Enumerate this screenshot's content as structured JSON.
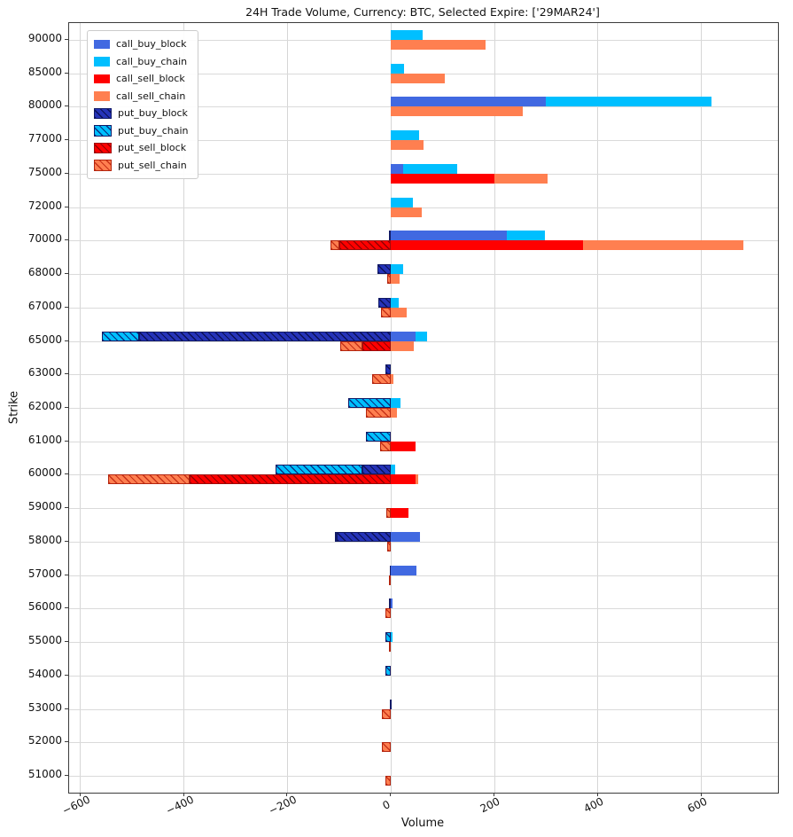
{
  "chart_data": {
    "type": "bar",
    "orientation": "horizontal",
    "stacked": true,
    "title": "24H Trade Volume, Currency: BTC, Selected Expire: ['29MAR24']",
    "xlabel": "Volume",
    "ylabel": "Strike",
    "xlim": [
      -622,
      748
    ],
    "xticks": [
      -600,
      -400,
      -200,
      0,
      200,
      400,
      600
    ],
    "grid": true,
    "legend_position": "upper-left",
    "colors": {
      "call_buy_block": "#4169e1",
      "call_buy_chain": "#00bfff",
      "call_sell_block": "#ff0000",
      "call_sell_chain": "#ff7f50",
      "put_buy_block": "#2533b8",
      "put_buy_chain": "#00bfff",
      "put_sell_block": "#ff0000",
      "put_sell_chain": "#ff7f50"
    },
    "legend": [
      {
        "key": "call_buy_block",
        "label": "call_buy_block",
        "cls": "cbb",
        "hatch": false
      },
      {
        "key": "call_buy_chain",
        "label": "call_buy_chain",
        "cls": "cbc",
        "hatch": false
      },
      {
        "key": "call_sell_block",
        "label": "call_sell_block",
        "cls": "csb",
        "hatch": false
      },
      {
        "key": "call_sell_chain",
        "label": "call_sell_chain",
        "cls": "csc",
        "hatch": false
      },
      {
        "key": "put_buy_block",
        "label": "put_buy_block",
        "cls": "pbb",
        "hatch": true
      },
      {
        "key": "put_buy_chain",
        "label": "put_buy_chain",
        "cls": "pbc",
        "hatch": true
      },
      {
        "key": "put_sell_block",
        "label": "put_sell_block",
        "cls": "psb",
        "hatch": true
      },
      {
        "key": "put_sell_chain",
        "label": "put_sell_chain",
        "cls": "psc",
        "hatch": true
      }
    ],
    "categories": [
      90000,
      85000,
      80000,
      77000,
      75000,
      72000,
      70000,
      68000,
      67000,
      65000,
      63000,
      62000,
      61000,
      60000,
      59000,
      58000,
      57000,
      56000,
      55000,
      54000,
      53000,
      52000,
      51000
    ],
    "rows": [
      {
        "strike": 90000,
        "call_buy_block": 0,
        "call_buy_chain": 61,
        "call_sell_block": 0,
        "call_sell_chain": 183,
        "put_buy_block": 0,
        "put_buy_chain": 0,
        "put_sell_block": 0,
        "put_sell_chain": 0
      },
      {
        "strike": 85000,
        "call_buy_block": 0,
        "call_buy_chain": 25,
        "call_sell_block": 0,
        "call_sell_chain": 104,
        "put_buy_block": 0,
        "put_buy_chain": 0,
        "put_sell_block": 0,
        "put_sell_chain": 0
      },
      {
        "strike": 80000,
        "call_buy_block": 300,
        "call_buy_chain": 320,
        "call_sell_block": 0,
        "call_sell_chain": 255,
        "put_buy_block": 0,
        "put_buy_chain": 0,
        "put_sell_block": 0,
        "put_sell_chain": 0
      },
      {
        "strike": 77000,
        "call_buy_block": 0,
        "call_buy_chain": 55,
        "call_sell_block": 0,
        "call_sell_chain": 63,
        "put_buy_block": 0,
        "put_buy_chain": 0,
        "put_sell_block": 0,
        "put_sell_chain": 0
      },
      {
        "strike": 75000,
        "call_buy_block": 24,
        "call_buy_chain": 104,
        "call_sell_block": 200,
        "call_sell_chain": 103,
        "put_buy_block": 0,
        "put_buy_chain": 0,
        "put_sell_block": 0,
        "put_sell_chain": 0
      },
      {
        "strike": 72000,
        "call_buy_block": 0,
        "call_buy_chain": 43,
        "call_sell_block": 0,
        "call_sell_chain": 59,
        "put_buy_block": 0,
        "put_buy_chain": 0,
        "put_sell_block": 0,
        "put_sell_chain": 0
      },
      {
        "strike": 70000,
        "call_buy_block": 224,
        "call_buy_chain": 74,
        "call_sell_block": 371,
        "call_sell_chain": 311,
        "put_buy_block": -4,
        "put_buy_chain": 0,
        "put_sell_block": -100,
        "put_sell_chain": -17
      },
      {
        "strike": 68000,
        "call_buy_block": 0,
        "call_buy_chain": 24,
        "call_sell_block": 0,
        "call_sell_chain": 16,
        "put_buy_block": -26,
        "put_buy_chain": 0,
        "put_sell_block": 0,
        "put_sell_chain": -8
      },
      {
        "strike": 67000,
        "call_buy_block": 0,
        "call_buy_chain": 15,
        "call_sell_block": 0,
        "call_sell_chain": 31,
        "put_buy_block": -24,
        "put_buy_chain": 0,
        "put_sell_block": 0,
        "put_sell_chain": -19
      },
      {
        "strike": 65000,
        "call_buy_block": 48,
        "call_buy_chain": 22,
        "call_sell_block": 0,
        "call_sell_chain": 45,
        "put_buy_block": -486,
        "put_buy_chain": -72,
        "put_sell_block": -55,
        "put_sell_chain": -43
      },
      {
        "strike": 63000,
        "call_buy_block": 0,
        "call_buy_chain": 0,
        "call_sell_block": 0,
        "call_sell_chain": 5,
        "put_buy_block": -10,
        "put_buy_chain": 0,
        "put_sell_block": 0,
        "put_sell_chain": -36
      },
      {
        "strike": 62000,
        "call_buy_block": 0,
        "call_buy_chain": 19,
        "call_sell_block": 0,
        "call_sell_chain": 11,
        "put_buy_block": 0,
        "put_buy_chain": -83,
        "put_sell_block": 0,
        "put_sell_chain": -49
      },
      {
        "strike": 61000,
        "call_buy_block": 0,
        "call_buy_chain": 0,
        "call_sell_block": 48,
        "call_sell_chain": 0,
        "put_buy_block": 0,
        "put_buy_chain": -49,
        "put_sell_block": 0,
        "put_sell_chain": -21
      },
      {
        "strike": 60000,
        "call_buy_block": 0,
        "call_buy_chain": 8,
        "call_sell_block": 47,
        "call_sell_chain": 5,
        "put_buy_block": -55,
        "put_buy_chain": -168,
        "put_sell_block": -389,
        "put_sell_chain": -158
      },
      {
        "strike": 59000,
        "call_buy_block": 0,
        "call_buy_chain": 0,
        "call_sell_block": 34,
        "call_sell_chain": 0,
        "put_buy_block": 0,
        "put_buy_chain": 0,
        "put_sell_block": 0,
        "put_sell_chain": -9
      },
      {
        "strike": 58000,
        "call_buy_block": 56,
        "call_buy_chain": 0,
        "call_sell_block": 0,
        "call_sell_chain": 0,
        "put_buy_block": -104,
        "put_buy_chain": -5,
        "put_sell_block": 0,
        "put_sell_chain": -8
      },
      {
        "strike": 57000,
        "call_buy_block": 50,
        "call_buy_chain": 0,
        "call_sell_block": 0,
        "call_sell_chain": 0,
        "put_buy_block": -2,
        "put_buy_chain": 0,
        "put_sell_block": 0,
        "put_sell_chain": -4
      },
      {
        "strike": 56000,
        "call_buy_block": 3,
        "call_buy_chain": 0,
        "call_sell_block": 0,
        "call_sell_chain": 0,
        "put_buy_block": -3,
        "put_buy_chain": 0,
        "put_sell_block": 0,
        "put_sell_chain": -10
      },
      {
        "strike": 55000,
        "call_buy_block": 0,
        "call_buy_chain": 3,
        "call_sell_block": 0,
        "call_sell_chain": 0,
        "put_buy_block": 0,
        "put_buy_chain": -10,
        "put_sell_block": 0,
        "put_sell_chain": -4
      },
      {
        "strike": 54000,
        "call_buy_block": 0,
        "call_buy_chain": 0,
        "call_sell_block": 0,
        "call_sell_chain": 0,
        "put_buy_block": 0,
        "put_buy_chain": -10,
        "put_sell_block": 0,
        "put_sell_chain": 0
      },
      {
        "strike": 53000,
        "call_buy_block": 0,
        "call_buy_chain": 0,
        "call_sell_block": 0,
        "call_sell_chain": 0,
        "put_buy_block": -2,
        "put_buy_chain": 0,
        "put_sell_block": 0,
        "put_sell_chain": -17
      },
      {
        "strike": 52000,
        "call_buy_block": 0,
        "call_buy_chain": 0,
        "call_sell_block": 0,
        "call_sell_chain": 0,
        "put_buy_block": 0,
        "put_buy_chain": 0,
        "put_sell_block": 0,
        "put_sell_chain": -17
      },
      {
        "strike": 51000,
        "call_buy_block": 0,
        "call_buy_chain": 0,
        "call_sell_block": 0,
        "call_sell_chain": 0,
        "put_buy_block": 0,
        "put_buy_chain": 0,
        "put_sell_block": 0,
        "put_sell_chain": -10
      }
    ]
  }
}
